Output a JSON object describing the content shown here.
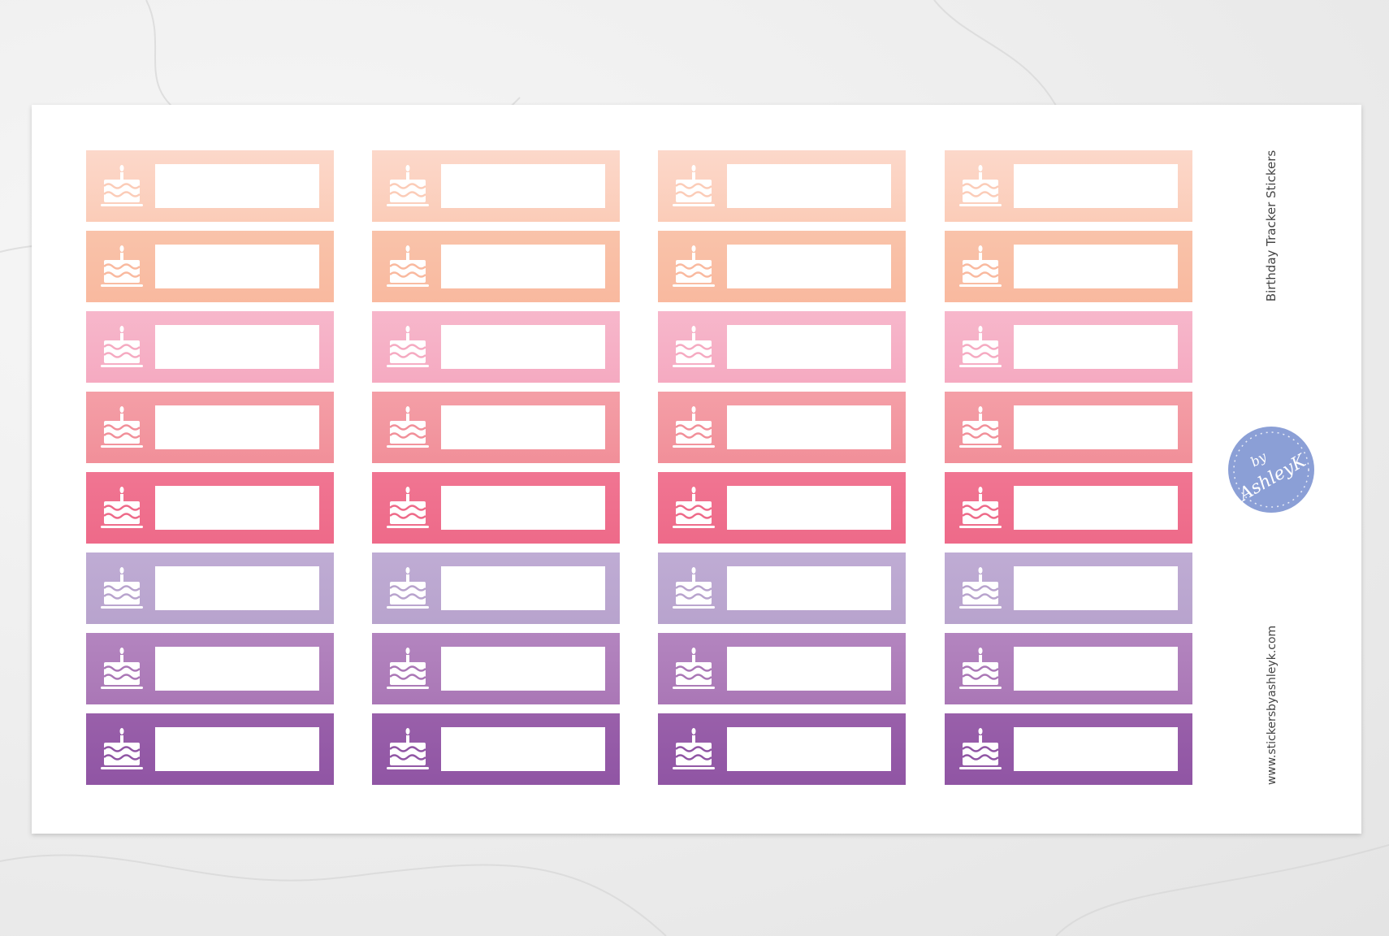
{
  "product": {
    "title": "Birthday Tracker Stickers",
    "website": "www.stickersbyashleyk.com",
    "logo": {
      "top": "by",
      "name": "AshleyK"
    }
  }
}
